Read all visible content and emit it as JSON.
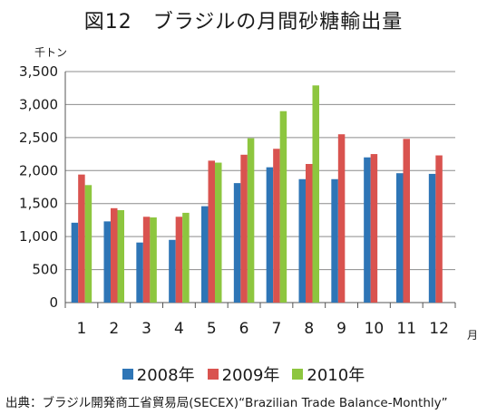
{
  "chart_data": {
    "type": "bar",
    "title": "図12　ブラジルの月間砂糖輸出量",
    "ylabel": "千トン",
    "xlabel": "月",
    "ylim": [
      0,
      3500
    ],
    "yticks": [
      "0",
      "500",
      "1,000",
      "1,500",
      "2,000",
      "2,500",
      "3,000",
      "3,500"
    ],
    "ytick_values": [
      0,
      500,
      1000,
      1500,
      2000,
      2500,
      3000,
      3500
    ],
    "categories": [
      "1",
      "2",
      "3",
      "4",
      "5",
      "6",
      "7",
      "8",
      "9",
      "10",
      "11",
      "12"
    ],
    "grid": true,
    "legend_position": "bottom",
    "series": [
      {
        "name": "2008年",
        "color": "#2e75b6",
        "values": [
          1210,
          1230,
          910,
          950,
          1460,
          1810,
          2050,
          1870,
          1870,
          2200,
          1960,
          1950
        ]
      },
      {
        "name": "2009年",
        "color": "#d9534f",
        "values": [
          1940,
          1430,
          1300,
          1300,
          2150,
          2240,
          2330,
          2100,
          2550,
          2250,
          2480,
          2230
        ]
      },
      {
        "name": "2010年",
        "color": "#8dc63f",
        "values": [
          1780,
          1400,
          1290,
          1360,
          2120,
          2490,
          2900,
          3290,
          null,
          null,
          null,
          null
        ]
      }
    ],
    "source": "出典：ブラジル開発商工省貿易局(SECEX)“Brazilian Trade Balance-Monthly”"
  }
}
